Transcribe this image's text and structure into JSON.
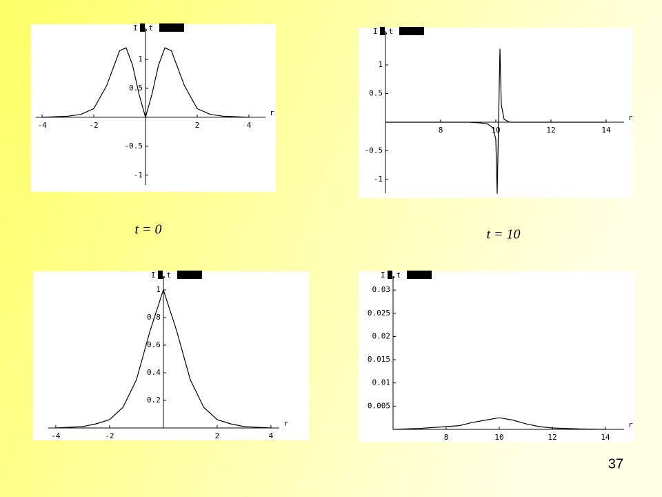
{
  "chart_data": [
    {
      "type": "line",
      "xlabel": "r",
      "ylabel": [
        "I",
        ",t"
      ],
      "x": [
        -4,
        -3.5,
        -3,
        -2.5,
        -2,
        -1.5,
        -1.25,
        -1,
        -0.75,
        -0.5,
        -0.25,
        0,
        0.25,
        0.5,
        0.75,
        1,
        1.25,
        1.5,
        2,
        2.5,
        3,
        3.5,
        4
      ],
      "values": [
        0,
        0.01,
        0.02,
        0.05,
        0.15,
        0.55,
        0.85,
        1.15,
        1.2,
        0.9,
        0.4,
        0,
        0.4,
        0.9,
        1.2,
        1.15,
        0.85,
        0.55,
        0.15,
        0.05,
        0.02,
        0.01,
        0
      ],
      "xlim": [
        -4.24,
        4.64
      ],
      "ylim": [
        -1.17,
        1.55
      ],
      "xticks": [
        -4,
        -2,
        2,
        4
      ],
      "yticks": [
        -1,
        -0.5,
        0.5,
        1
      ],
      "color": "#000000"
    },
    {
      "type": "line",
      "xlabel": "r",
      "ylabel": [
        "I",
        ",t"
      ],
      "x": [
        6,
        9,
        9.4,
        9.7,
        9.9,
        10,
        10.05,
        10.1,
        10.15,
        10.2,
        10.3,
        10.5,
        14
      ],
      "values": [
        0,
        0,
        -0.01,
        -0.03,
        -0.1,
        -0.3,
        -1.25,
        0,
        1.28,
        0.3,
        0.05,
        0,
        0
      ],
      "xlim": [
        6,
        14.65
      ],
      "ylim": [
        -1.24,
        1.59
      ],
      "xticks": [
        8,
        10,
        12,
        14
      ],
      "yticks": [
        -1,
        -0.5,
        0.5,
        1
      ],
      "color": "#000000"
    },
    {
      "type": "line",
      "xlabel": "r",
      "ylabel": [
        "I",
        ",t"
      ],
      "x": [
        -4,
        -3,
        -2.5,
        -2,
        -1.5,
        -1,
        -0.5,
        0,
        0.5,
        1,
        1.5,
        2,
        2.5,
        3,
        4
      ],
      "values": [
        0,
        0.01,
        0.03,
        0.06,
        0.15,
        0.35,
        0.7,
        1,
        0.7,
        0.35,
        0.15,
        0.06,
        0.03,
        0.01,
        0
      ],
      "xlim": [
        -4.28,
        4.31
      ],
      "ylim": [
        0,
        1.1
      ],
      "xticks": [
        -4,
        -2,
        2,
        4
      ],
      "yticks": [
        0.2,
        0.4,
        0.6,
        0.8,
        1
      ],
      "color": "#000000"
    },
    {
      "type": "line",
      "xlabel": "r",
      "ylabel": [
        "I",
        ",t"
      ],
      "x": [
        6,
        7,
        8,
        8.5,
        9,
        9.5,
        10,
        10.5,
        11,
        11.5,
        12,
        13,
        14
      ],
      "values": [
        0,
        0.0002,
        0.0006,
        0.0008,
        0.0015,
        0.002,
        0.0025,
        0.002,
        0.0012,
        0.0006,
        0.0003,
        0.0001,
        0
      ],
      "xlim": [
        6,
        14.7
      ],
      "ylim": [
        0,
        0.033
      ],
      "xticks": [
        8,
        10,
        12,
        14
      ],
      "yticks": [
        0.005,
        0.01,
        0.015,
        0.02,
        0.025,
        0.03
      ],
      "color": "#000000"
    }
  ],
  "captions": [
    "t = 0",
    "t = 10"
  ],
  "page_number": "37"
}
